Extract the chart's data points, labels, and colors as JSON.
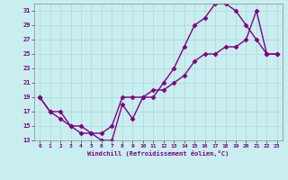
{
  "xlabel": "Windchill (Refroidissement éolien,°C)",
  "bg_color": "#c8eef0",
  "line_color": "#800080",
  "grid_color": "#b0d8d8",
  "xlim": [
    -0.5,
    23.5
  ],
  "ylim": [
    13,
    32
  ],
  "xticks": [
    0,
    1,
    2,
    3,
    4,
    5,
    6,
    7,
    8,
    9,
    10,
    11,
    12,
    13,
    14,
    15,
    16,
    17,
    18,
    19,
    20,
    21,
    22,
    23
  ],
  "yticks": [
    13,
    15,
    17,
    19,
    21,
    23,
    25,
    27,
    29,
    31
  ],
  "line1_x": [
    0,
    1,
    2,
    3,
    4,
    5,
    6,
    7,
    8,
    9,
    10,
    11,
    12,
    13,
    14,
    15,
    16,
    17,
    18,
    19,
    20,
    21,
    22,
    23
  ],
  "line1_y": [
    19,
    17,
    16,
    15,
    14,
    14,
    13,
    13,
    18,
    16,
    19,
    19,
    21,
    23,
    26,
    29,
    30,
    32,
    32,
    31,
    29,
    27,
    25,
    25
  ],
  "line2_x": [
    0,
    1,
    2,
    3,
    4,
    5,
    6,
    7,
    8,
    9,
    10,
    11,
    12,
    13,
    14,
    15,
    16,
    17,
    18,
    19,
    20,
    21,
    22,
    23
  ],
  "line2_y": [
    19,
    17,
    17,
    15,
    15,
    14,
    14,
    15,
    19,
    19,
    19,
    20,
    20,
    21,
    22,
    24,
    25,
    25,
    26,
    26,
    27,
    31,
    25,
    25
  ],
  "marker": "D",
  "markersize": 2.5,
  "linewidth": 1.0
}
